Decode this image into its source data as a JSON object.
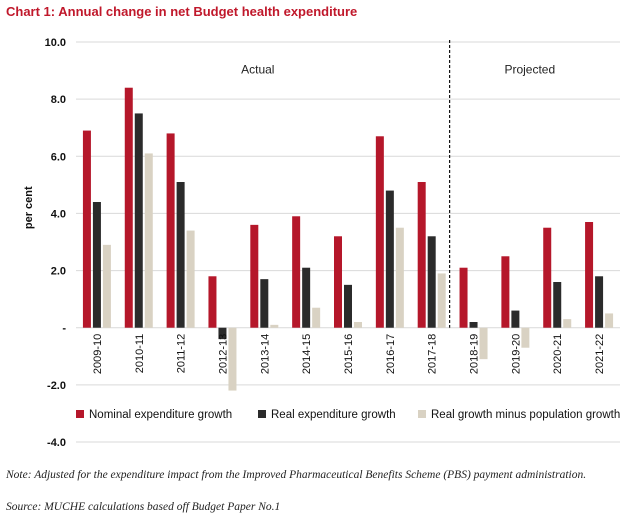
{
  "chart_data": {
    "type": "bar",
    "title": "Chart 1: Annual change in net Budget health expenditure",
    "ylabel": "per cent",
    "xlabel": "",
    "ylim": [
      -4,
      10
    ],
    "yticks": [
      "10.0",
      "8.0",
      "6.0",
      "4.0",
      "2.0",
      "-",
      "-2.0",
      "-4.0"
    ],
    "categories": [
      "2009-10",
      "2010-11",
      "2011-12",
      "2012-13",
      "2013-14",
      "2014-15",
      "2015-16",
      "2016-17",
      "2017-18",
      "2018-19",
      "2019-20",
      "2020-21",
      "2021-22"
    ],
    "series": [
      {
        "name": "Nominal expenditure growth",
        "color": "#b5172a",
        "values": [
          6.9,
          8.4,
          6.8,
          1.8,
          3.6,
          3.9,
          3.2,
          6.7,
          5.1,
          2.1,
          2.5,
          3.5,
          3.7
        ]
      },
      {
        "name": "Real expenditure growth",
        "color": "#2b2b2b",
        "values": [
          4.4,
          7.5,
          5.1,
          -0.4,
          1.7,
          2.1,
          1.5,
          4.8,
          3.2,
          0.2,
          0.6,
          1.6,
          1.8
        ]
      },
      {
        "name": "Real growth minus population growth",
        "color": "#d9d2c3",
        "values": [
          2.9,
          6.1,
          3.4,
          -2.2,
          0.1,
          0.7,
          0.2,
          3.5,
          1.9,
          -1.1,
          -0.7,
          0.3,
          0.5
        ]
      }
    ],
    "annotations": {
      "actual": "Actual",
      "projected": "Projected"
    },
    "divider_after_category": "2017-18",
    "legend_position": "bottom",
    "grid": true
  },
  "note": "Note: Adjusted for the expenditure impact from the Improved Pharmaceutical Benefits Scheme (PBS) payment administration.",
  "source": "Source: MUCHE calculations based off Budget Paper No.1"
}
